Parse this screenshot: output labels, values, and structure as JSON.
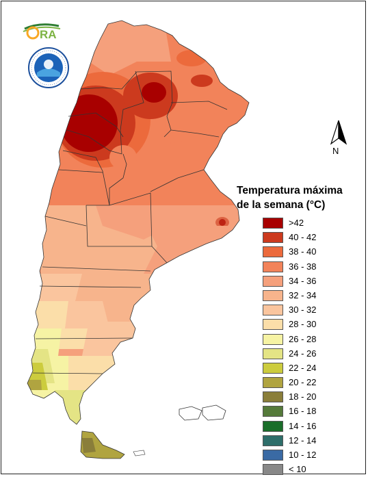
{
  "logo": {
    "text": "ORA"
  },
  "seal": {
    "text": "SERVICIO METEOROLOGICO NACIONAL ARGENTINA"
  },
  "north_arrow": {
    "label": "N"
  },
  "legend": {
    "title_line1": "Temperatura máxima",
    "title_line2": "de la semana (°C)",
    "items": [
      {
        "label": ">42",
        "color": "#a80000"
      },
      {
        "label": "40 - 42",
        "color": "#cc3a1e"
      },
      {
        "label": "38 - 40",
        "color": "#ec6a3c"
      },
      {
        "label": "36 - 38",
        "color": "#f2835a"
      },
      {
        "label": "34 - 36",
        "color": "#f5a07c"
      },
      {
        "label": "32 - 34",
        "color": "#f7b48c"
      },
      {
        "label": "30 - 32",
        "color": "#fac59e"
      },
      {
        "label": "28 - 30",
        "color": "#fbdea9"
      },
      {
        "label": "26 - 28",
        "color": "#f6f3a4"
      },
      {
        "label": "24 - 26",
        "color": "#e4e485"
      },
      {
        "label": "22 - 24",
        "color": "#cccc3e"
      },
      {
        "label": "20 - 22",
        "color": "#b0a440"
      },
      {
        "label": "18 - 20",
        "color": "#8a7e3a"
      },
      {
        "label": "16 - 18",
        "color": "#557a3a"
      },
      {
        "label": "14 - 16",
        "color": "#1a6e2a"
      },
      {
        "label": "12 - 14",
        "color": "#2e6e6a"
      },
      {
        "label": "10 - 12",
        "color": "#3a6aa4"
      },
      {
        "label": "< 10",
        "color": "#888888"
      }
    ]
  }
}
